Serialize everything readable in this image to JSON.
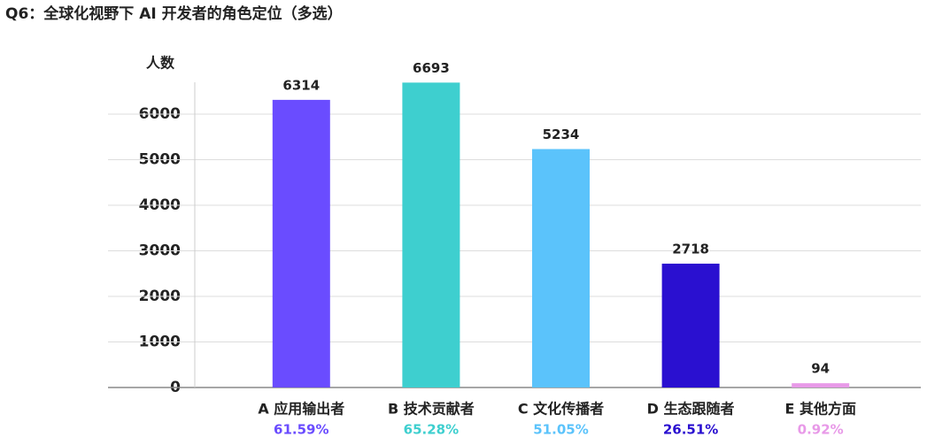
{
  "chart_data": {
    "type": "bar",
    "title": "Q6：全球化视野下 AI 开发者的角色定位（多选）",
    "y_label": "人数",
    "categories": [
      "A 应用输出者",
      "B 技术贡献者",
      "C 文化传播者",
      "D 生态跟随者",
      "E 其他方面"
    ],
    "values": [
      6314,
      6693,
      5234,
      2718,
      94
    ],
    "share_labels": [
      "61.59%",
      "65.28%",
      "51.05%",
      "26.51%",
      "0.92%"
    ],
    "colors": [
      "#6a4cff",
      "#3ecfcf",
      "#5bc3fb",
      "#2a10d0",
      "#e89ae8"
    ],
    "ylim": [
      0,
      6700
    ],
    "yticks": [
      0,
      1000,
      2000,
      3000,
      4000,
      5000,
      6000
    ],
    "grid": true
  }
}
